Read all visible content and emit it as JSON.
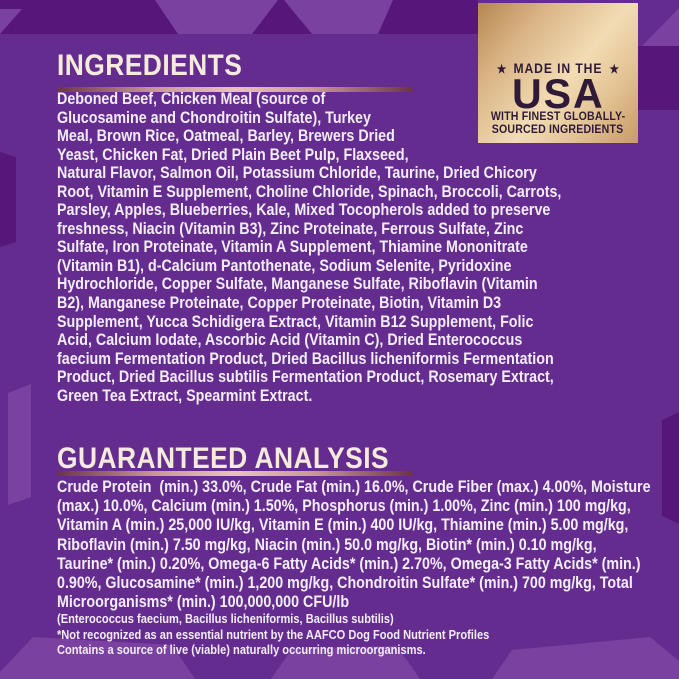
{
  "colors": {
    "background": "#652C90",
    "ray_dark": "#57167A",
    "ray_light": "#7B41A0",
    "heading_text": "#F4EBDC",
    "body_text": "#F2EDF6",
    "rule_gradient_ends": "#6B3644",
    "rule_gradient_middle": "#E9C4BA",
    "badge_gold_light": "#F2DCB4",
    "badge_gold_dark": "#B58751",
    "badge_text": "#2F1B38"
  },
  "badge": {
    "star": "★",
    "top_line": "MADE IN THE",
    "country": "USA",
    "sub_line1": "WITH FINEST GLOBALLY-",
    "sub_line2": "SOURCED INGREDIENTS"
  },
  "ingredients": {
    "heading": "INGREDIENTS",
    "lines": [
      "Deboned Beef, Chicken Meal (source of",
      "Glucosamine and Chondroitin Sulfate), Turkey",
      "Meal, Brown Rice, Oatmeal, Barley, Brewers Dried",
      "Yeast, Chicken Fat, Dried Plain Beet Pulp, Flaxseed,",
      "Natural Flavor, Salmon Oil, Potassium Chloride, Taurine, Dried Chicory",
      "Root, Vitamin E Supplement, Choline Chloride, Spinach, Broccoli, Carrots,",
      "Parsley, Apples, Blueberries, Kale, Mixed Tocopherols added to preserve",
      "freshness, Niacin (Vitamin B3), Zinc Proteinate, Ferrous Sulfate, Zinc",
      "Sulfate, Iron Proteinate, Vitamin A Supplement, Thiamine Mononitrate",
      "(Vitamin B1), d-Calcium Pantothenate, Sodium Selenite, Pyridoxine",
      "Hydrochloride, Copper Sulfate, Manganese Sulfate, Riboflavin (Vitamin",
      "B2), Manganese Proteinate, Copper Proteinate, Biotin, Vitamin D3",
      "Supplement, Yucca Schidigera Extract, Vitamin B12 Supplement, Folic",
      "Acid, Calcium Iodate, Ascorbic Acid (Vitamin C), Dried Enterococcus",
      "faecium Fermentation Product, Dried Bacillus licheniformis Fermentation",
      "Product, Dried Bacillus subtilis Fermentation Product, Rosemary Extract,",
      "Green Tea Extract, Spearmint Extract."
    ]
  },
  "guaranteed_analysis": {
    "heading": "GUARANTEED ANALYSIS",
    "lines": [
      "Crude Protein  (min.) 33.0%, Crude Fat (min.) 16.0%, Crude Fiber (max.) 4.00%, Moisture",
      "(max.) 10.0%, Calcium (min.) 1.50%, Phosphorus (min.) 1.00%, Zinc (min.) 100 mg/kg,",
      "Vitamin A (min.) 25,000 IU/kg, Vitamin E (min.) 400 IU/kg, Thiamine (min.) 5.00 mg/kg,",
      "Riboflavin (min.) 7.50 mg/kg, Niacin (min.) 50.0 mg/kg, Biotin* (min.) 0.10 mg/kg,",
      "Taurine* (min.) 0.20%, Omega-6 Fatty Acids* (min.) 2.70%, Omega-3 Fatty Acids* (min.)",
      "0.90%, Glucosamine* (min.) 1,200 mg/kg, Chondroitin Sulfate* (min.) 700 mg/kg, Total",
      "Microorganisms* (min.) 100,000,000 CFU/lb"
    ],
    "footnotes": [
      "(Enterococcus faecium, Bacillus licheniformis, Bacillus subtilis)",
      "*Not recognized as an essential nutrient by the AAFCO Dog Food Nutrient Profiles",
      "Contains a source of live (viable) naturally occurring microorganisms."
    ]
  }
}
